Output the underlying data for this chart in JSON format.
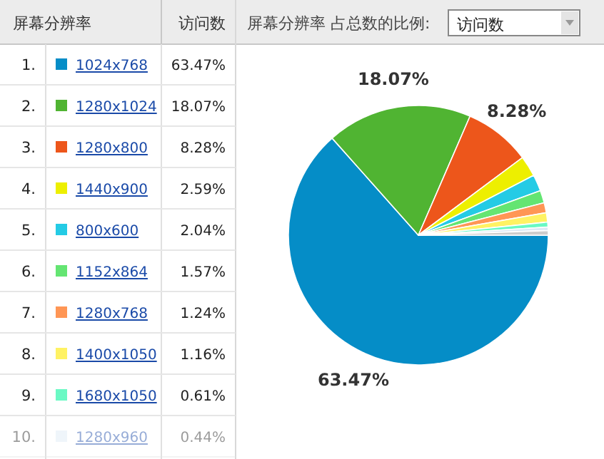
{
  "chart_data": {
    "type": "pie",
    "title": "屏幕分辨率 占总数的比例:",
    "legend_title": "屏幕分辨率",
    "legend": "left",
    "categories": [
      "1024x768",
      "1280x1024",
      "1280x800",
      "1440x900",
      "800x600",
      "1152x864",
      "1280x768",
      "1400x1050",
      "1680x1050",
      "1280x960",
      null
    ],
    "values": [
      63.47,
      18.07,
      8.28,
      2.59,
      2.04,
      1.57,
      1.24,
      1.16,
      0.61,
      0.44,
      0.57
    ],
    "colors": [
      "#058dc7",
      "#50b432",
      "#ed561b",
      "#edef00",
      "#24cbe5",
      "#64e572",
      "#ff9655",
      "#fff263",
      "#6af9c4",
      "#dce9f5",
      "#cccccc"
    ],
    "value_labels": [
      "63.47%",
      "18.07%",
      "8.28%",
      "2.59%",
      "2.04%",
      "1.57%",
      "1.24%",
      "1.16%",
      "0.61%",
      "0.44%",
      null
    ],
    "annotations": [
      "访问数",
      "访问数",
      "1.",
      "2.",
      "3.",
      "4.",
      "5.",
      "6.",
      "7.",
      "8.",
      "9.",
      "10."
    ]
  }
}
